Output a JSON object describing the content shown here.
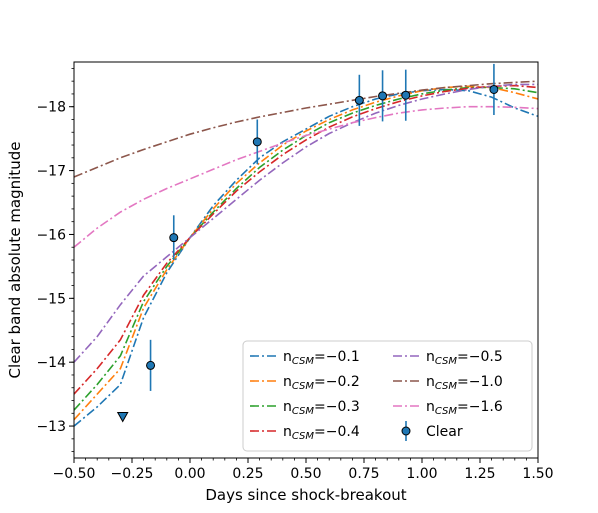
{
  "chart_data": {
    "type": "line",
    "xlabel": "Days since shock-breakout",
    "ylabel": "Clear band absolute magnitude",
    "xlim": [
      -0.5,
      1.5
    ],
    "ylim": [
      -12.5,
      -18.7
    ],
    "y_inverted": true,
    "grid": false,
    "legend_position": "lower-right",
    "x_ticks": [
      "−0.50",
      "−0.25",
      "0.00",
      "0.25",
      "0.50",
      "0.75",
      "1.00",
      "1.25",
      "1.50"
    ],
    "x_tick_values": [
      -0.5,
      -0.25,
      0.0,
      0.25,
      0.5,
      0.75,
      1.0,
      1.25,
      1.5
    ],
    "y_ticks": [
      "−13",
      "−14",
      "−15",
      "−16",
      "−17",
      "−18"
    ],
    "y_tick_values": [
      -13,
      -14,
      -15,
      -16,
      -17,
      -18
    ],
    "series": [
      {
        "name": "−0.1",
        "color": "#1f77b4",
        "points": [
          [
            -0.5,
            -13.0
          ],
          [
            -0.4,
            -13.3
          ],
          [
            -0.3,
            -13.65
          ],
          [
            -0.2,
            -14.7
          ],
          [
            -0.1,
            -15.4
          ],
          [
            0.0,
            -15.95
          ],
          [
            0.1,
            -16.45
          ],
          [
            0.2,
            -16.85
          ],
          [
            0.3,
            -17.2
          ],
          [
            0.4,
            -17.45
          ],
          [
            0.5,
            -17.65
          ],
          [
            0.6,
            -17.85
          ],
          [
            0.7,
            -18.0
          ],
          [
            0.8,
            -18.12
          ],
          [
            0.9,
            -18.2
          ],
          [
            1.0,
            -18.25
          ],
          [
            1.1,
            -18.27
          ],
          [
            1.2,
            -18.25
          ],
          [
            1.3,
            -18.15
          ],
          [
            1.4,
            -17.98
          ],
          [
            1.5,
            -17.85
          ]
        ]
      },
      {
        "name": "−0.2",
        "color": "#ff7f0e",
        "points": [
          [
            -0.5,
            -13.1
          ],
          [
            -0.4,
            -13.5
          ],
          [
            -0.3,
            -13.9
          ],
          [
            -0.2,
            -14.85
          ],
          [
            -0.1,
            -15.45
          ],
          [
            0.0,
            -15.95
          ],
          [
            0.1,
            -16.4
          ],
          [
            0.2,
            -16.8
          ],
          [
            0.3,
            -17.12
          ],
          [
            0.4,
            -17.4
          ],
          [
            0.5,
            -17.62
          ],
          [
            0.6,
            -17.8
          ],
          [
            0.7,
            -17.95
          ],
          [
            0.8,
            -18.07
          ],
          [
            0.9,
            -18.17
          ],
          [
            1.0,
            -18.25
          ],
          [
            1.1,
            -18.3
          ],
          [
            1.2,
            -18.32
          ],
          [
            1.3,
            -18.3
          ],
          [
            1.4,
            -18.22
          ],
          [
            1.5,
            -18.12
          ]
        ]
      },
      {
        "name": "−0.3",
        "color": "#2ca02c",
        "points": [
          [
            -0.5,
            -13.25
          ],
          [
            -0.4,
            -13.65
          ],
          [
            -0.3,
            -14.1
          ],
          [
            -0.2,
            -14.95
          ],
          [
            -0.1,
            -15.5
          ],
          [
            0.0,
            -15.95
          ],
          [
            0.1,
            -16.35
          ],
          [
            0.2,
            -16.72
          ],
          [
            0.3,
            -17.05
          ],
          [
            0.4,
            -17.32
          ],
          [
            0.5,
            -17.55
          ],
          [
            0.6,
            -17.75
          ],
          [
            0.7,
            -17.9
          ],
          [
            0.8,
            -18.02
          ],
          [
            0.9,
            -18.12
          ],
          [
            1.0,
            -18.2
          ],
          [
            1.1,
            -18.26
          ],
          [
            1.2,
            -18.3
          ],
          [
            1.3,
            -18.3
          ],
          [
            1.4,
            -18.28
          ],
          [
            1.5,
            -18.22
          ]
        ]
      },
      {
        "name": "−0.4",
        "color": "#d62728",
        "points": [
          [
            -0.5,
            -13.5
          ],
          [
            -0.4,
            -13.9
          ],
          [
            -0.3,
            -14.35
          ],
          [
            -0.2,
            -15.05
          ],
          [
            -0.1,
            -15.55
          ],
          [
            0.0,
            -15.95
          ],
          [
            0.1,
            -16.32
          ],
          [
            0.2,
            -16.68
          ],
          [
            0.3,
            -16.98
          ],
          [
            0.4,
            -17.25
          ],
          [
            0.5,
            -17.48
          ],
          [
            0.6,
            -17.68
          ],
          [
            0.7,
            -17.84
          ],
          [
            0.8,
            -17.97
          ],
          [
            0.9,
            -18.08
          ],
          [
            1.0,
            -18.17
          ],
          [
            1.1,
            -18.24
          ],
          [
            1.2,
            -18.29
          ],
          [
            1.3,
            -18.32
          ],
          [
            1.4,
            -18.33
          ],
          [
            1.5,
            -18.3
          ]
        ]
      },
      {
        "name": "−0.5",
        "color": "#9467bd",
        "points": [
          [
            -0.5,
            -14.0
          ],
          [
            -0.4,
            -14.4
          ],
          [
            -0.3,
            -14.9
          ],
          [
            -0.2,
            -15.35
          ],
          [
            -0.1,
            -15.65
          ],
          [
            0.0,
            -15.95
          ],
          [
            0.1,
            -16.25
          ],
          [
            0.2,
            -16.55
          ],
          [
            0.3,
            -16.85
          ],
          [
            0.4,
            -17.12
          ],
          [
            0.5,
            -17.37
          ],
          [
            0.6,
            -17.58
          ],
          [
            0.7,
            -17.75
          ],
          [
            0.8,
            -17.9
          ],
          [
            0.9,
            -18.02
          ],
          [
            1.0,
            -18.12
          ],
          [
            1.1,
            -18.2
          ],
          [
            1.2,
            -18.27
          ],
          [
            1.3,
            -18.32
          ],
          [
            1.4,
            -18.35
          ],
          [
            1.5,
            -18.35
          ]
        ]
      },
      {
        "name": "−1.0",
        "color": "#8c564b",
        "points": [
          [
            -0.5,
            -16.9
          ],
          [
            -0.4,
            -17.05
          ],
          [
            -0.3,
            -17.2
          ],
          [
            -0.2,
            -17.33
          ],
          [
            -0.1,
            -17.45
          ],
          [
            0.0,
            -17.57
          ],
          [
            0.1,
            -17.67
          ],
          [
            0.2,
            -17.76
          ],
          [
            0.3,
            -17.84
          ],
          [
            0.4,
            -17.91
          ],
          [
            0.5,
            -17.98
          ],
          [
            0.6,
            -18.04
          ],
          [
            0.7,
            -18.1
          ],
          [
            0.8,
            -18.16
          ],
          [
            0.9,
            -18.21
          ],
          [
            1.0,
            -18.26
          ],
          [
            1.1,
            -18.3
          ],
          [
            1.2,
            -18.33
          ],
          [
            1.3,
            -18.36
          ],
          [
            1.4,
            -18.38
          ],
          [
            1.5,
            -18.4
          ]
        ]
      },
      {
        "name": "−1.6",
        "color": "#e377c2",
        "points": [
          [
            -0.5,
            -15.8
          ],
          [
            -0.4,
            -16.1
          ],
          [
            -0.3,
            -16.35
          ],
          [
            -0.2,
            -16.55
          ],
          [
            -0.1,
            -16.72
          ],
          [
            0.0,
            -16.87
          ],
          [
            0.1,
            -17.02
          ],
          [
            0.2,
            -17.17
          ],
          [
            0.3,
            -17.3
          ],
          [
            0.4,
            -17.43
          ],
          [
            0.5,
            -17.55
          ],
          [
            0.6,
            -17.65
          ],
          [
            0.7,
            -17.75
          ],
          [
            0.8,
            -17.83
          ],
          [
            0.9,
            -17.9
          ],
          [
            1.0,
            -17.95
          ],
          [
            1.1,
            -17.98
          ],
          [
            1.2,
            -18.0
          ],
          [
            1.3,
            -18.0
          ],
          [
            1.4,
            -17.99
          ],
          [
            1.5,
            -17.97
          ]
        ]
      }
    ],
    "observations": {
      "name": "Clear",
      "color": "#1f77b4",
      "points": [
        {
          "x": -0.17,
          "y": -13.95,
          "err": 0.4
        },
        {
          "x": -0.07,
          "y": -15.95,
          "err": 0.35
        },
        {
          "x": 0.29,
          "y": -17.45,
          "err": 0.35
        },
        {
          "x": 0.73,
          "y": -18.1,
          "err": 0.4
        },
        {
          "x": 0.83,
          "y": -18.17,
          "err": 0.4
        },
        {
          "x": 0.93,
          "y": -18.18,
          "err": 0.4
        },
        {
          "x": 1.31,
          "y": -18.27,
          "err": 0.4
        }
      ],
      "upper_limit": {
        "x": -0.29,
        "y": -13.15
      }
    }
  },
  "legend": {
    "prefix": "n",
    "sub": "CSM",
    "eq": "=",
    "observed_label": "Clear"
  }
}
